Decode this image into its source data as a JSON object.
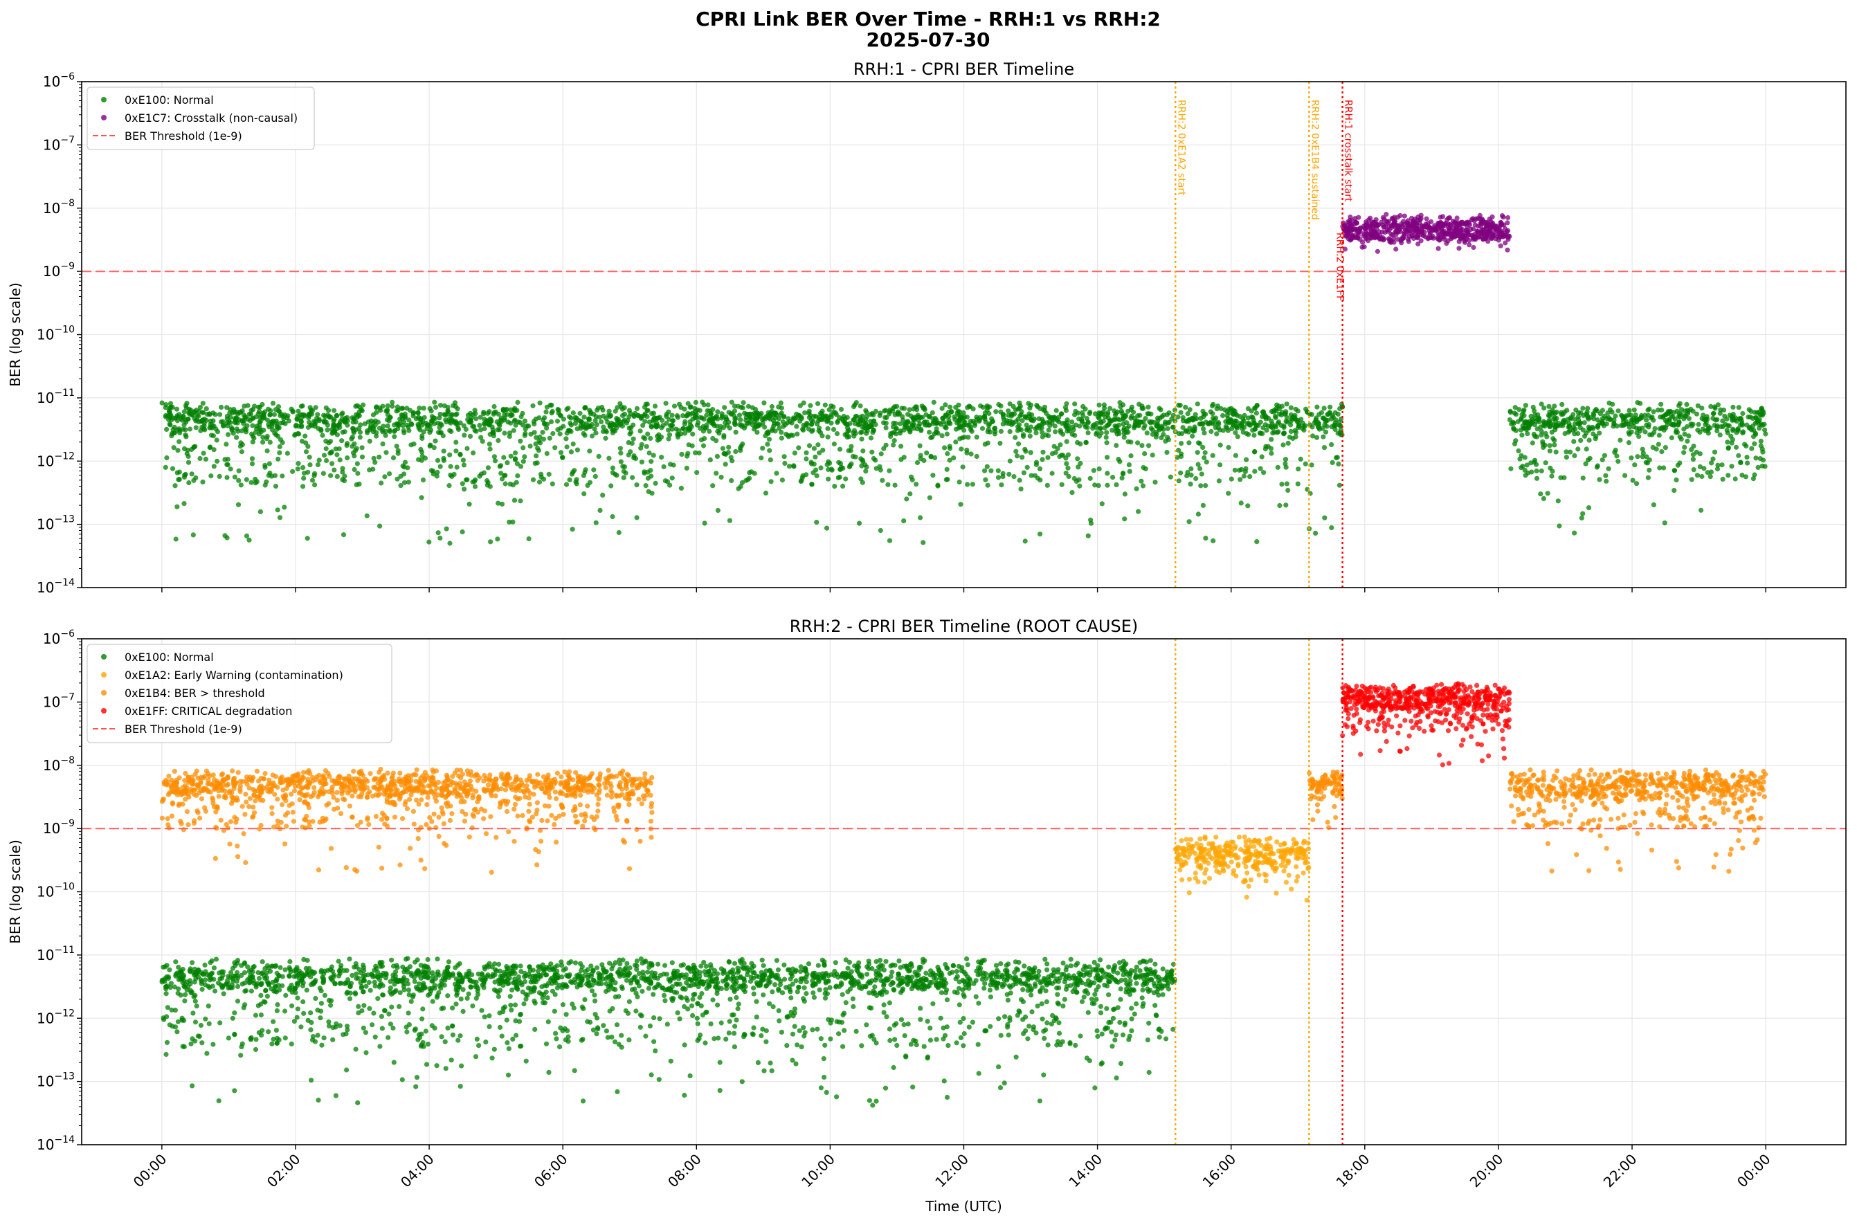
{
  "suptitle_line1": "CPRI Link BER Over Time - RRH:1 vs RRH:2",
  "suptitle_line2": "2025-07-30",
  "xlabel": "Time (UTC)",
  "ylabel": "BER (log scale)",
  "colors": {
    "normal": "#008000",
    "crosstalk": "#800080",
    "early_warning": "#FFA500",
    "ber_threshold": "#FF8C00",
    "critical": "#FF0000",
    "threshold_line": "#FF5555"
  },
  "chart_data": [
    {
      "type": "scatter",
      "title": "RRH:1 - CPRI BER Timeline",
      "xlabel": "",
      "ylabel": "BER (log scale)",
      "yscale": "log",
      "ylim": [
        1e-14,
        1e-06
      ],
      "ytick_labels": [
        "10^-14",
        "10^-13",
        "10^-12",
        "10^-11",
        "10^-10",
        "10^-9",
        "10^-8",
        "10^-7",
        "10^-6"
      ],
      "xlim_hours": [
        -1.2,
        25.2
      ],
      "xtick_labels": [
        "00:00",
        "02:00",
        "04:00",
        "06:00",
        "08:00",
        "10:00",
        "12:00",
        "14:00",
        "16:00",
        "18:00",
        "20:00",
        "22:00",
        "00:00"
      ],
      "grid": true,
      "legend_position": "top-left",
      "threshold": {
        "label": "BER Threshold (1e-9)",
        "value": 1e-09
      },
      "annotations": [
        {
          "text": "RRH:2 0xE1A2 start",
          "time": "15:10",
          "color": "#FFA500"
        },
        {
          "text": "RRH:2 0xE1B4 sustained",
          "time": "17:10",
          "color": "#FFA500"
        },
        {
          "text": "RRH:2 0xE1FF",
          "time": "17:40",
          "color": "#FF0000"
        },
        {
          "text": "RRH:1 crosstalk start",
          "time": "17:40",
          "color": "#FF0000"
        }
      ],
      "series": [
        {
          "name": "0xE100: Normal",
          "color": "#008000",
          "segments": [
            {
              "start": "00:00",
              "end": "17:40",
              "ber_min": 5e-14,
              "ber_max": 9e-12,
              "typical": 5e-12
            },
            {
              "start": "20:10",
              "end": "24:00",
              "ber_min": 7e-14,
              "ber_max": 9e-12,
              "typical": 5e-12
            }
          ]
        },
        {
          "name": "0xE1C7: Crosstalk (non-causal)",
          "color": "#800080",
          "segments": [
            {
              "start": "17:40",
              "end": "20:10",
              "ber_min": 2e-09,
              "ber_max": 8e-09,
              "typical": 6e-09
            }
          ]
        }
      ]
    },
    {
      "type": "scatter",
      "title": "RRH:2 - CPRI BER Timeline (ROOT CAUSE)",
      "xlabel": "Time (UTC)",
      "ylabel": "BER (log scale)",
      "yscale": "log",
      "ylim": [
        1e-14,
        1e-06
      ],
      "ytick_labels": [
        "10^-14",
        "10^-13",
        "10^-12",
        "10^-11",
        "10^-10",
        "10^-9",
        "10^-8",
        "10^-7",
        "10^-6"
      ],
      "xlim_hours": [
        -1.2,
        25.2
      ],
      "xtick_labels": [
        "00:00",
        "02:00",
        "04:00",
        "06:00",
        "08:00",
        "10:00",
        "12:00",
        "14:00",
        "16:00",
        "18:00",
        "20:00",
        "22:00",
        "00:00"
      ],
      "grid": true,
      "legend_position": "top-left",
      "threshold": {
        "label": "BER Threshold (1e-9)",
        "value": 1e-09
      },
      "series": [
        {
          "name": "0xE100: Normal",
          "color": "#008000",
          "segments": [
            {
              "start": "00:00",
              "end": "15:10",
              "ber_min": 4e-14,
              "ber_max": 9e-12,
              "typical": 5e-12
            }
          ]
        },
        {
          "name": "0xE1A2: Early Warning (contamination)",
          "color": "#FFA500",
          "segments": [
            {
              "start": "15:10",
              "end": "17:10",
              "ber_min": 5e-11,
              "ber_max": 8e-10,
              "typical": 5e-10
            }
          ]
        },
        {
          "name": "0xE1B4: BER > threshold",
          "color": "#FF8C00",
          "segments": [
            {
              "start": "00:00",
              "end": "07:20",
              "ber_min": 2e-10,
              "ber_max": 9e-09,
              "typical": 6e-09
            },
            {
              "start": "17:10",
              "end": "17:40",
              "ber_min": 1e-09,
              "ber_max": 9e-09,
              "typical": 6e-09
            },
            {
              "start": "20:10",
              "end": "24:00",
              "ber_min": 2e-10,
              "ber_max": 9e-09,
              "typical": 6e-09
            }
          ]
        },
        {
          "name": "0xE1FF: CRITICAL degradation",
          "color": "#FF0000",
          "segments": [
            {
              "start": "17:40",
              "end": "20:10",
              "ber_min": 1e-08,
              "ber_max": 2e-07,
              "typical": 1.5e-07
            }
          ]
        }
      ]
    }
  ]
}
